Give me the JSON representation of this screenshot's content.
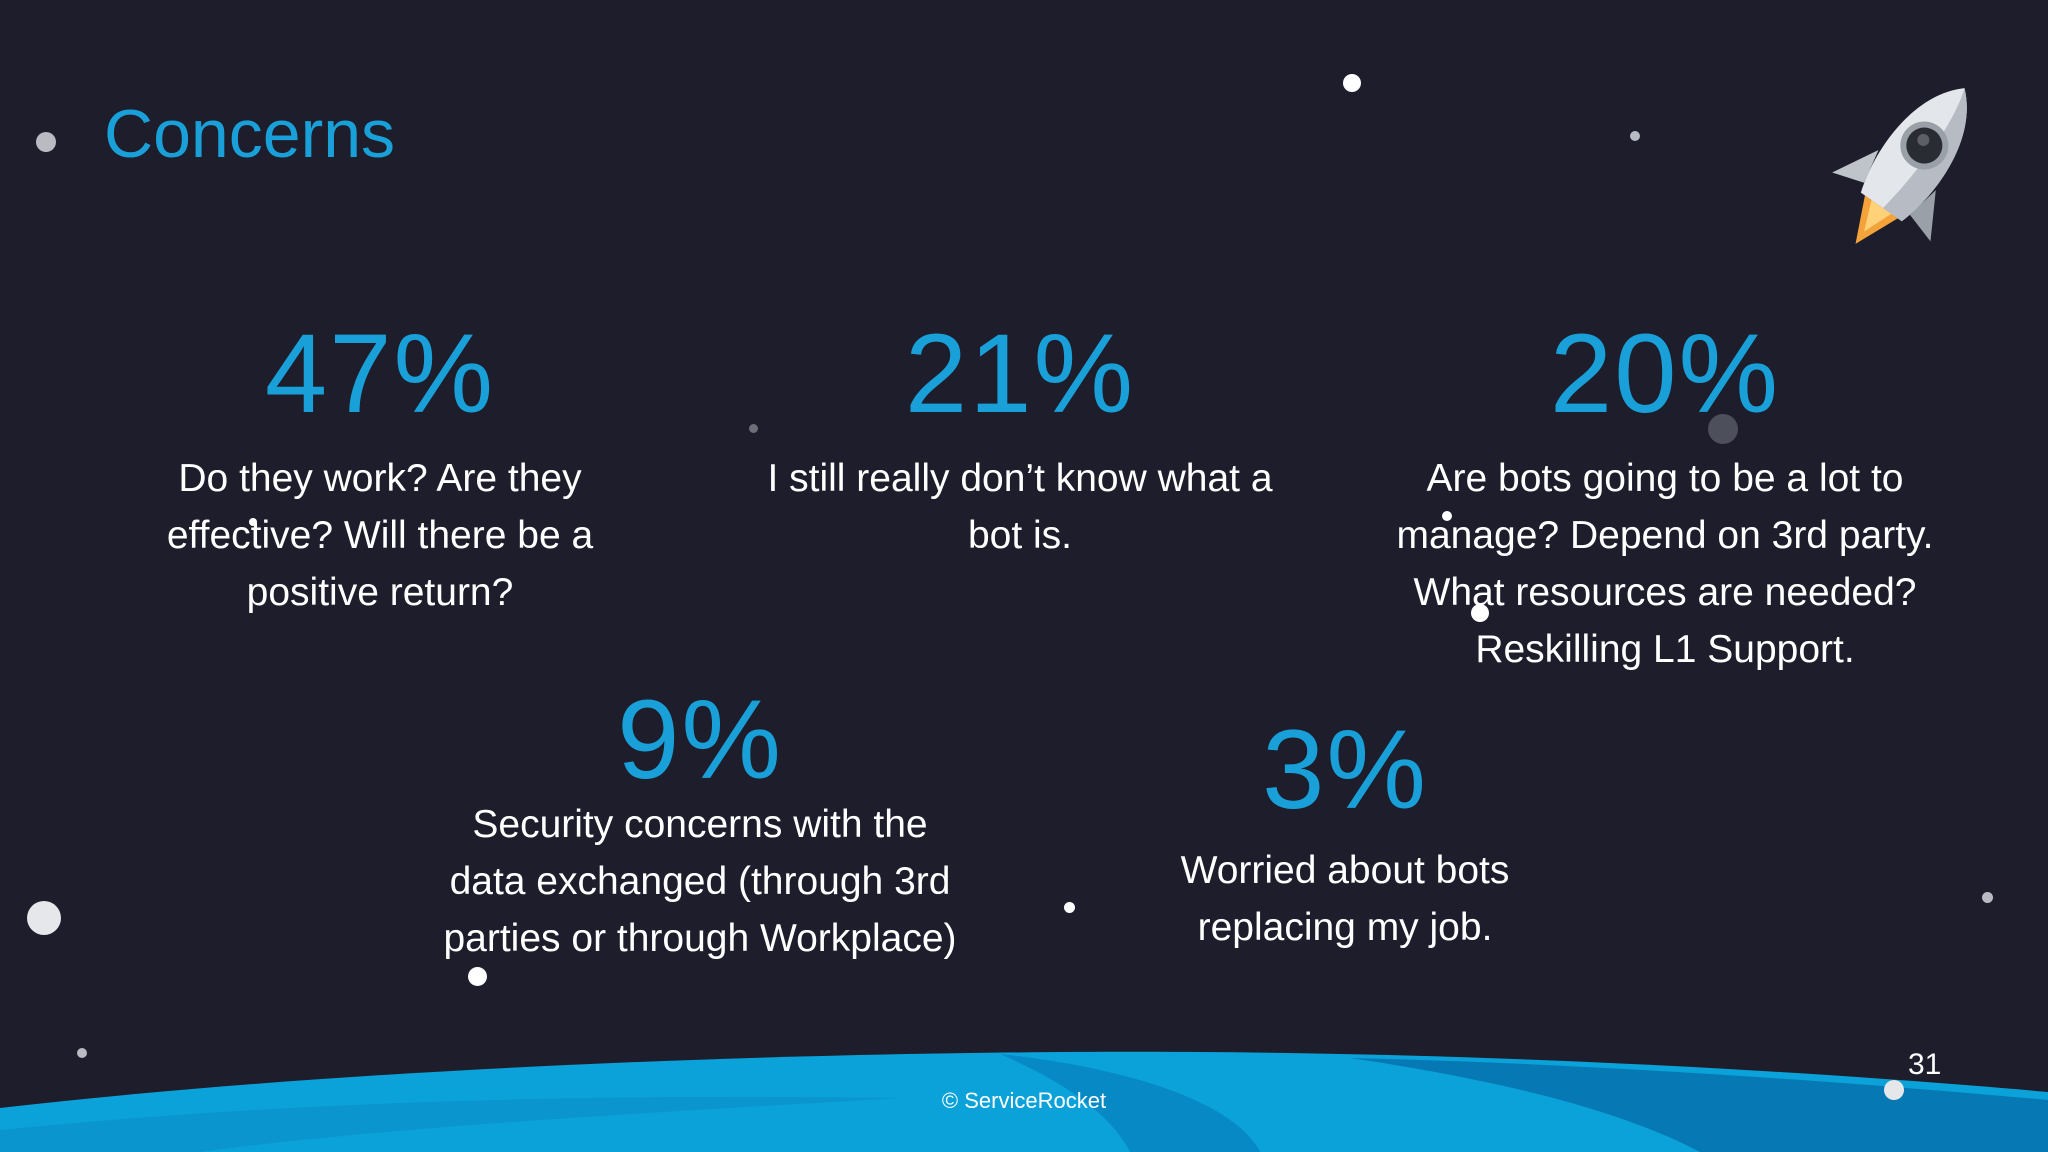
{
  "slide": {
    "title": "Concerns",
    "stats": [
      {
        "percent": "47%",
        "text": "Do they work? Are they effective? Will there be a positive return?"
      },
      {
        "percent": "21%",
        "text": "I still really don’t know what a bot is."
      },
      {
        "percent": "20%",
        "text": "Are bots going to be a lot to manage? Depend on 3rd party. What resources are needed? Reskilling L1 Support."
      },
      {
        "percent": "9%",
        "text": "Security concerns with the data exchanged (through 3rd parties or through Workplace)"
      },
      {
        "percent": "3%",
        "text": "Worried about bots replacing my job."
      }
    ],
    "footer": "© ServiceRocket",
    "page_number": "31"
  },
  "colors": {
    "background": "#1d1d2b",
    "accent": "#1aa0d8",
    "text": "#ffffff",
    "wave_light": "#0ba3d9",
    "wave_dark": "#057fb8"
  },
  "icons": [
    "rocket-icon"
  ]
}
